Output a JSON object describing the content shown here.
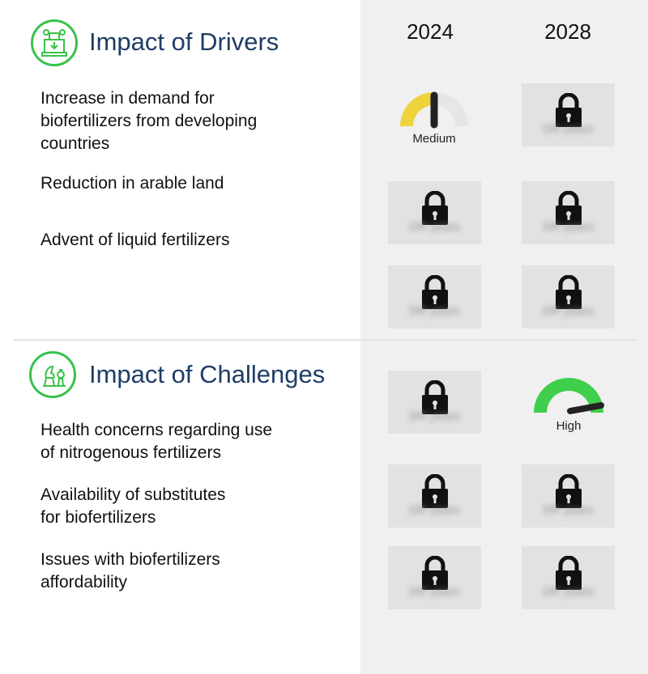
{
  "years": [
    "2024",
    "2028"
  ],
  "drivers": {
    "title": "Impact of Drivers",
    "icon": "factory-icon",
    "rows": [
      {
        "label": "Increase in demand for\nbiofertilizers from developing\ncountries"
      },
      {
        "label": "Reduction in arable land"
      },
      {
        "label": "Advent of liquid fertilizers"
      }
    ]
  },
  "challenges": {
    "title": "Impact of Challenges",
    "icon": "chess-pieces-icon",
    "rows": [
      {
        "label": "Health concerns regarding use\nof nitrogenous fertilizers"
      },
      {
        "label": "Availability of substitutes\nfor biofertilizers"
      },
      {
        "label": "Issues with biofertilizers\naffordability"
      }
    ]
  },
  "gauges": {
    "medium": {
      "label": "Medium",
      "level": "medium",
      "color": "#f0d23c"
    },
    "high": {
      "label": "High",
      "level": "high",
      "color": "#3fcf4c"
    }
  },
  "locked_text": "DR years",
  "colors": {
    "accent_green": "#39c24a",
    "title_navy": "#1f3d66",
    "panel_gray": "#f0f0f0",
    "card_gray": "#e2e2e2"
  }
}
